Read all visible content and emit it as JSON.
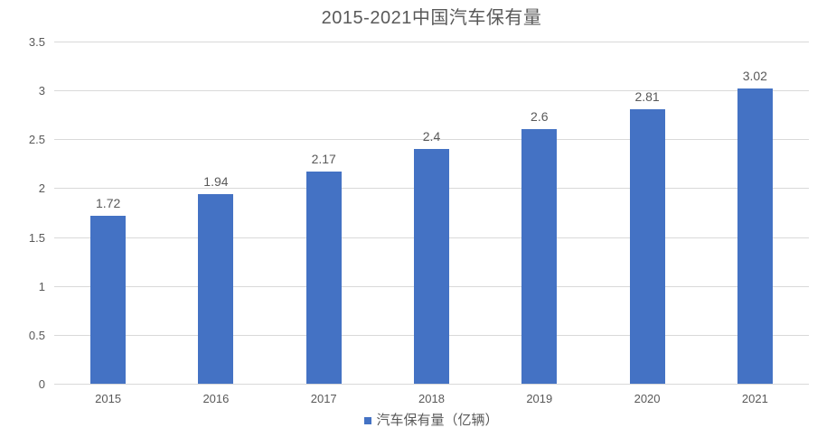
{
  "chart_data": {
    "type": "bar",
    "title": "2015-2021中国汽车保有量",
    "categories": [
      "2015",
      "2016",
      "2017",
      "2018",
      "2019",
      "2020",
      "2021"
    ],
    "series": [
      {
        "name": "汽车保有量（亿辆）",
        "values": [
          1.72,
          1.94,
          2.17,
          2.4,
          2.6,
          2.81,
          3.02
        ],
        "value_labels": [
          "1.72",
          "1.94",
          "2.17",
          "2.4",
          "2.6",
          "2.81",
          "3.02"
        ]
      }
    ],
    "xlabel": "",
    "ylabel": "",
    "ylim": [
      0,
      3.5
    ],
    "ytick_step": 0.5,
    "ytick_labels": [
      "0",
      "0.5",
      "1",
      "1.5",
      "2",
      "2.5",
      "3",
      "3.5"
    ],
    "grid": true,
    "data_labels_shown": true,
    "legend_position": "bottom",
    "legend": [
      {
        "label": "汽车保有量（亿辆）",
        "color": "#4472C4"
      }
    ],
    "colors": {
      "bar": "#4472C4",
      "gridline": "#D9D9D9",
      "axis_line": "#D9D9D9",
      "title_text": "#595959",
      "tick_text": "#595959",
      "data_label_text": "#595959",
      "legend_text": "#595959",
      "background": "#FFFFFF"
    }
  }
}
